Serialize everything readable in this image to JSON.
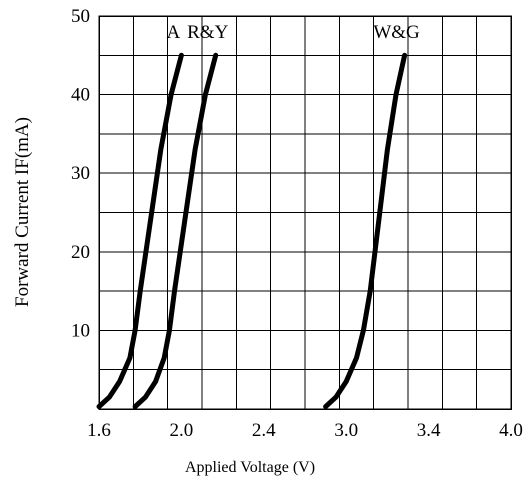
{
  "chart_data": {
    "type": "line",
    "xlabel": "Applied Voltage  (V)",
    "ylabel": "Forward Current IF(mA)",
    "xlim": [
      1.6,
      4.0
    ],
    "ylim": [
      0,
      50
    ],
    "x_ticks": [
      "1.6",
      "2.0",
      "2.4",
      "3.0",
      "3.4",
      "4.0"
    ],
    "y_ticks": [
      "10",
      "20",
      "30",
      "40",
      "50"
    ],
    "x_tick_positions": [
      1.6,
      1.8,
      2.0,
      2.2,
      2.4,
      2.6,
      2.8,
      3.0,
      3.2,
      3.4,
      3.6,
      3.8,
      4.0
    ],
    "y_tick_positions": [
      5,
      10,
      15,
      20,
      25,
      30,
      35,
      40,
      45,
      50
    ],
    "grid": true,
    "series": [
      {
        "name": "A",
        "x": [
          1.6,
          1.66,
          1.72,
          1.78,
          1.81,
          1.84,
          1.9,
          1.96,
          2.02,
          2.08
        ],
        "y": [
          0.3,
          1.5,
          3.5,
          6.5,
          10,
          15,
          24,
          33,
          40,
          45
        ]
      },
      {
        "name": "R&Y",
        "x": [
          1.81,
          1.87,
          1.93,
          1.98,
          2.01,
          2.04,
          2.1,
          2.16,
          2.22,
          2.28
        ],
        "y": [
          0.3,
          1.5,
          3.5,
          6.5,
          10,
          15,
          24,
          33,
          40,
          45
        ]
      },
      {
        "name": "W&G",
        "x": [
          2.92,
          2.98,
          3.04,
          3.1,
          3.14,
          3.18,
          3.23,
          3.28,
          3.33,
          3.38
        ],
        "y": [
          0.3,
          1.5,
          3.5,
          6.5,
          10,
          15,
          24,
          33,
          40,
          45
        ]
      }
    ]
  }
}
